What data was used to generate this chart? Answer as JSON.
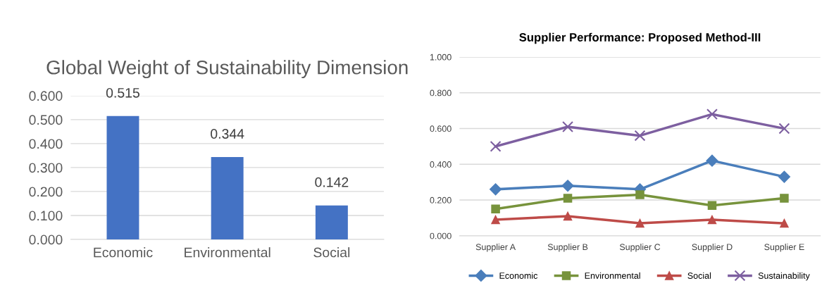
{
  "chart_data": [
    {
      "type": "bar",
      "title": "Global Weight of Sustainability Dimension",
      "categories": [
        "Economic",
        "Environmental",
        "Social"
      ],
      "values": [
        0.515,
        0.344,
        0.142
      ],
      "color": "#4472c4",
      "data_labels": true,
      "value_labels": [
        "0.515",
        "0.344",
        "0.142"
      ],
      "ylim": [
        0,
        0.6
      ],
      "yticks": [
        {
          "value": 0,
          "label": "0.000"
        },
        {
          "value": 0.1,
          "label": "0.100"
        },
        {
          "value": 0.2,
          "label": "0.200"
        },
        {
          "value": 0.3,
          "label": "0.300"
        },
        {
          "value": 0.4,
          "label": "0.400"
        },
        {
          "value": 0.5,
          "label": "0.500"
        },
        {
          "value": 0.6,
          "label": "0.600"
        }
      ],
      "grid": "y"
    },
    {
      "type": "line",
      "title": "Supplier Performance: Proposed Method-III",
      "categories": [
        "Supplier A",
        "Supplier B",
        "Supplier C",
        "Supplier D",
        "Supplier E"
      ],
      "series": [
        {
          "name": "Economic",
          "color": "#4a7ebb",
          "marker": "diamond",
          "values": [
            0.26,
            0.28,
            0.26,
            0.42,
            0.33
          ]
        },
        {
          "name": "Environmental",
          "color": "#77933c",
          "marker": "square",
          "values": [
            0.15,
            0.21,
            0.23,
            0.17,
            0.21
          ]
        },
        {
          "name": "Social",
          "color": "#be4b48",
          "marker": "triangle",
          "values": [
            0.09,
            0.11,
            0.07,
            0.09,
            0.07
          ]
        },
        {
          "name": "Sustainability",
          "color": "#7d5fa0",
          "marker": "cross",
          "values": [
            0.5,
            0.61,
            0.56,
            0.68,
            0.6
          ]
        }
      ],
      "ylim": [
        0,
        1
      ],
      "yticks": [
        {
          "value": 0,
          "label": "0.000"
        },
        {
          "value": 0.2,
          "label": "0.200"
        },
        {
          "value": 0.4,
          "label": "0.400"
        },
        {
          "value": 0.6,
          "label": "0.600"
        },
        {
          "value": 0.8,
          "label": "0.800"
        },
        {
          "value": 1,
          "label": "1.000"
        }
      ],
      "grid": "y",
      "legend": "bottom",
      "line_style": "solid"
    }
  ]
}
